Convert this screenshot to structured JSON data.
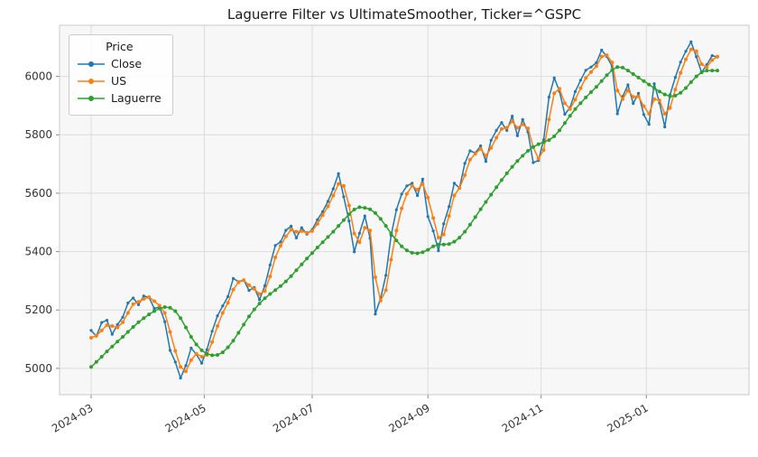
{
  "chart_data": {
    "type": "line",
    "title": "Laguerre Filter vs UltimateSmoother, Ticker=^GSPC",
    "legend": {
      "title": "Price",
      "position": "upper left"
    },
    "grid": true,
    "x_axis": {
      "tick_positions_day": [
        0,
        43,
        84,
        128,
        171,
        211
      ],
      "tick_labels": [
        "2024-03",
        "2024-05",
        "2024-07",
        "2024-09",
        "2024-11",
        "2025-01"
      ],
      "lim": [
        -12,
        250
      ]
    },
    "y_axis": {
      "ticks": [
        5000,
        5200,
        5400,
        5600,
        5800,
        6000
      ],
      "lim": [
        4910,
        6175
      ]
    },
    "x_days": [
      0,
      2,
      4,
      6,
      8,
      10,
      12,
      14,
      16,
      18,
      20,
      22,
      24,
      26,
      28,
      30,
      32,
      34,
      36,
      38,
      40,
      42,
      44,
      46,
      48,
      50,
      52,
      54,
      56,
      58,
      60,
      62,
      64,
      66,
      68,
      70,
      72,
      74,
      76,
      78,
      80,
      82,
      84,
      86,
      88,
      90,
      92,
      94,
      96,
      98,
      100,
      102,
      104,
      106,
      108,
      110,
      112,
      114,
      116,
      118,
      120,
      122,
      124,
      126,
      128,
      130,
      132,
      134,
      136,
      138,
      140,
      142,
      144,
      146,
      148,
      150,
      152,
      154,
      156,
      158,
      160,
      162,
      164,
      166,
      168,
      170,
      172,
      174,
      176,
      178,
      180,
      182,
      184,
      186,
      188,
      190,
      192,
      194,
      196,
      198,
      200,
      202,
      204,
      206,
      208,
      210,
      212,
      214,
      216,
      218,
      220,
      222,
      224,
      226,
      228,
      230,
      232,
      234,
      236,
      238
    ],
    "series": [
      {
        "name": "Close",
        "color": "#1f77b4",
        "values": [
          5130,
          5110,
          5157,
          5165,
          5117,
          5150,
          5175,
          5224,
          5241,
          5218,
          5248,
          5243,
          5205,
          5211,
          5160,
          5062,
          5022,
          4967,
          5010,
          5070,
          5048,
          5018,
          5064,
          5127,
          5180,
          5214,
          5246,
          5308,
          5297,
          5303,
          5267,
          5277,
          5235,
          5283,
          5354,
          5421,
          5433,
          5473,
          5487,
          5447,
          5482,
          5460,
          5475,
          5509,
          5537,
          5572,
          5615,
          5667,
          5588,
          5505,
          5399,
          5463,
          5522,
          5446,
          5186,
          5240,
          5319,
          5455,
          5543,
          5597,
          5625,
          5634,
          5592,
          5648,
          5520,
          5471,
          5403,
          5495,
          5554,
          5634,
          5618,
          5702,
          5745,
          5738,
          5762,
          5709,
          5781,
          5815,
          5842,
          5815,
          5864,
          5797,
          5852,
          5809,
          5705,
          5712,
          5783,
          5929,
          5995,
          5949,
          5870,
          5893,
          5948,
          5987,
          6021,
          6032,
          6047,
          6090,
          6068,
          6034,
          5872,
          5931,
          5971,
          5907,
          5942,
          5869,
          5836,
          5975,
          5909,
          5827,
          5937,
          5997,
          6049,
          6086,
          6118,
          6067,
          6013,
          6040,
          6071,
          6066
        ]
      },
      {
        "name": "US",
        "color": "#ff7f0e",
        "values": [
          5105,
          5112,
          5130,
          5148,
          5145,
          5140,
          5158,
          5190,
          5220,
          5228,
          5238,
          5244,
          5230,
          5215,
          5190,
          5125,
          5060,
          5005,
          4990,
          5028,
          5050,
          5040,
          5046,
          5090,
          5145,
          5190,
          5225,
          5270,
          5295,
          5302,
          5285,
          5272,
          5255,
          5265,
          5315,
          5380,
          5420,
          5452,
          5475,
          5468,
          5470,
          5465,
          5470,
          5495,
          5525,
          5555,
          5592,
          5632,
          5625,
          5558,
          5462,
          5432,
          5482,
          5472,
          5312,
          5232,
          5268,
          5372,
          5472,
          5548,
          5598,
          5625,
          5612,
          5632,
          5585,
          5515,
          5448,
          5458,
          5522,
          5592,
          5618,
          5662,
          5715,
          5735,
          5752,
          5728,
          5755,
          5790,
          5820,
          5824,
          5846,
          5824,
          5836,
          5822,
          5758,
          5718,
          5748,
          5852,
          5942,
          5958,
          5908,
          5888,
          5920,
          5960,
          5995,
          6015,
          6035,
          6068,
          6072,
          6048,
          5952,
          5922,
          5952,
          5930,
          5932,
          5898,
          5872,
          5922,
          5918,
          5872,
          5892,
          5955,
          6012,
          6058,
          6092,
          6086,
          6042,
          6032,
          6056,
          6068
        ]
      },
      {
        "name": "Laguerre",
        "color": "#2ca02c",
        "values": [
          5005,
          5022,
          5040,
          5058,
          5075,
          5092,
          5108,
          5125,
          5142,
          5158,
          5172,
          5185,
          5196,
          5205,
          5210,
          5208,
          5196,
          5172,
          5140,
          5108,
          5082,
          5062,
          5050,
          5045,
          5046,
          5055,
          5072,
          5095,
          5122,
          5150,
          5178,
          5202,
          5222,
          5240,
          5255,
          5268,
          5282,
          5298,
          5316,
          5336,
          5356,
          5376,
          5395,
          5414,
          5432,
          5450,
          5468,
          5488,
          5508,
          5528,
          5544,
          5552,
          5550,
          5545,
          5532,
          5512,
          5488,
          5462,
          5438,
          5418,
          5404,
          5396,
          5394,
          5398,
          5406,
          5418,
          5424,
          5424,
          5426,
          5434,
          5448,
          5468,
          5492,
          5518,
          5545,
          5570,
          5595,
          5620,
          5645,
          5668,
          5690,
          5710,
          5728,
          5745,
          5758,
          5768,
          5775,
          5782,
          5795,
          5815,
          5840,
          5865,
          5888,
          5908,
          5928,
          5946,
          5964,
          5984,
          6004,
          6022,
          6032,
          6030,
          6020,
          6008,
          5996,
          5984,
          5972,
          5960,
          5948,
          5938,
          5932,
          5934,
          5944,
          5960,
          5980,
          6000,
          6014,
          6020,
          6020,
          6020
        ]
      }
    ]
  }
}
